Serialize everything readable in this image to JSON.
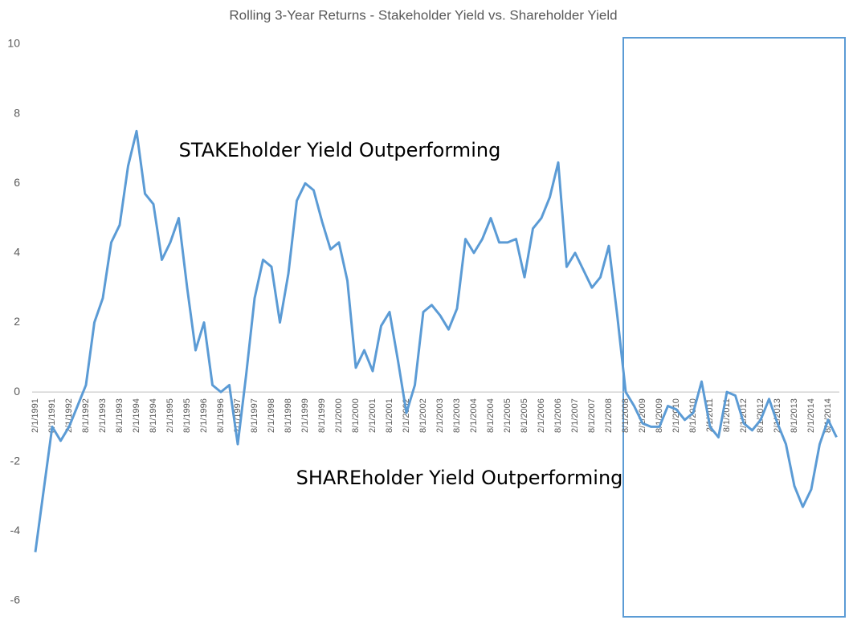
{
  "chart_data": {
    "type": "line",
    "title": "Rolling 3-Year Returns - Stakeholder Yield vs. Shareholder Yield",
    "annotations": [
      "STAKEholder Yield Outperforming",
      "SHAREholder Yield Outperforming"
    ],
    "categories": [
      "2/1/1991",
      null,
      "8/1/1991",
      null,
      "2/1/1992",
      null,
      "8/1/1992",
      null,
      "2/1/1993",
      null,
      "8/1/1993",
      null,
      "2/1/1994",
      null,
      "8/1/1994",
      null,
      "2/1/1995",
      null,
      "8/1/1995",
      null,
      "2/1/1996",
      null,
      "8/1/1996",
      null,
      "2/1/1997",
      null,
      "8/1/1997",
      null,
      "2/1/1998",
      null,
      "8/1/1998",
      null,
      "2/1/1999",
      null,
      "8/1/1999",
      null,
      "2/1/2000",
      null,
      "8/1/2000",
      null,
      "2/1/2001",
      null,
      "8/1/2001",
      null,
      "2/1/2002",
      null,
      "8/1/2002",
      null,
      "2/1/2003",
      null,
      "8/1/2003",
      null,
      "2/1/2004",
      null,
      "8/1/2004",
      null,
      "2/1/2005",
      null,
      "8/1/2005",
      null,
      "2/1/2006",
      null,
      "8/1/2006",
      null,
      "2/1/2007",
      null,
      "8/1/2007",
      null,
      "2/1/2008",
      null,
      "8/1/2008",
      null,
      "2/1/2009",
      null,
      "8/1/2009",
      null,
      "2/1/2010",
      null,
      "8/1/2010",
      null,
      "2/1/2011",
      null,
      "8/1/2011",
      null,
      "2/1/2012",
      null,
      "8/1/2012",
      null,
      "2/1/2013",
      null,
      "8/1/2013",
      null,
      "2/1/2014",
      null,
      "8/1/2014",
      null
    ],
    "values": [
      -4.6,
      -2.8,
      -1.0,
      -1.4,
      -1.0,
      -0.4,
      0.2,
      2.0,
      2.7,
      4.3,
      4.8,
      6.5,
      7.5,
      5.7,
      5.4,
      3.8,
      4.3,
      5.0,
      3.0,
      1.2,
      2.0,
      0.2,
      0.0,
      0.2,
      -1.5,
      0.5,
      2.7,
      3.8,
      3.6,
      2.0,
      3.4,
      5.5,
      6.0,
      5.8,
      4.9,
      4.1,
      4.3,
      3.2,
      0.7,
      1.2,
      0.6,
      1.9,
      2.3,
      0.9,
      -0.6,
      0.2,
      2.3,
      2.5,
      2.2,
      1.8,
      2.4,
      4.4,
      4.0,
      4.4,
      5.0,
      4.3,
      4.3,
      4.4,
      3.3,
      4.7,
      5.0,
      5.6,
      6.6,
      3.6,
      4.0,
      3.5,
      3.0,
      3.3,
      4.2,
      2.2,
      0.0,
      -0.4,
      -0.9,
      -1.0,
      -1.0,
      -0.4,
      -0.5,
      -0.8,
      -0.6,
      0.3,
      -1.0,
      -1.3,
      0.0,
      -0.1,
      -0.9,
      -1.1,
      -0.8,
      -0.2,
      -0.9,
      -1.5,
      -2.7,
      -3.3,
      -2.8,
      -1.5,
      -0.8,
      -1.3
    ],
    "color": "#5b9bd5",
    "ylim": [
      -6,
      10
    ],
    "yticks": [
      -6,
      -4,
      -2,
      0,
      2,
      4,
      6,
      8,
      10
    ],
    "grid": false
  }
}
